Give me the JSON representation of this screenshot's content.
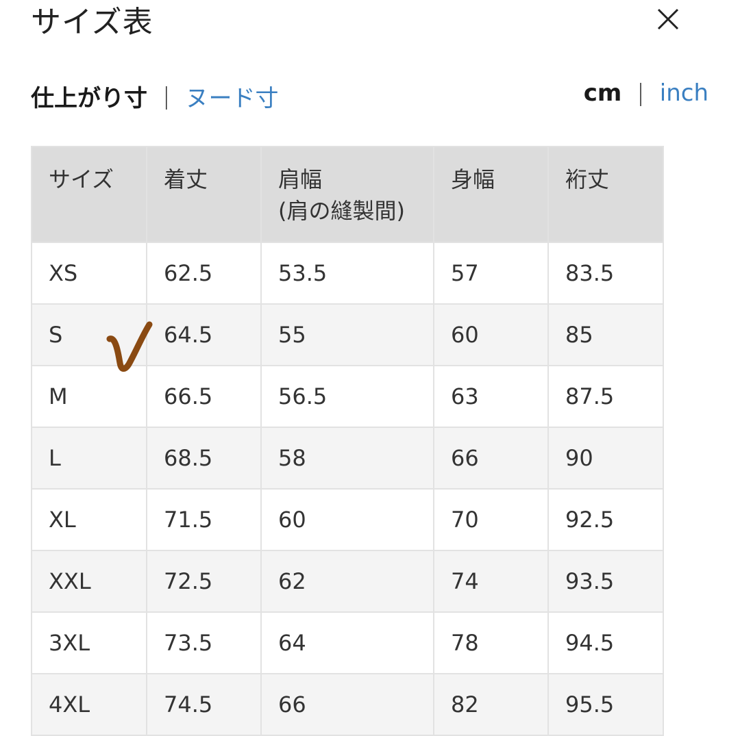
{
  "header": {
    "title": "サイズ表",
    "close_icon": "close-icon"
  },
  "measure_tabs": [
    {
      "label": "仕上がり寸",
      "active": true
    },
    {
      "label": "ヌード寸",
      "active": false
    }
  ],
  "unit_tabs": [
    {
      "label": "cm",
      "active": true
    },
    {
      "label": "inch",
      "active": false
    }
  ],
  "separator": "|",
  "table": {
    "headers": [
      "サイズ",
      "着丈",
      "肩幅\n(肩の縫製間)",
      "身幅",
      "裄丈"
    ],
    "rows": [
      [
        "XS",
        "62.5",
        "53.5",
        "57",
        "83.5"
      ],
      [
        "S",
        "64.5",
        "55",
        "60",
        "85"
      ],
      [
        "M",
        "66.5",
        "56.5",
        "63",
        "87.5"
      ],
      [
        "L",
        "68.5",
        "58",
        "66",
        "90"
      ],
      [
        "XL",
        "71.5",
        "60",
        "70",
        "92.5"
      ],
      [
        "XXL",
        "72.5",
        "62",
        "74",
        "93.5"
      ],
      [
        "3XL",
        "73.5",
        "64",
        "78",
        "94.5"
      ],
      [
        "4XL",
        "74.5",
        "66",
        "82",
        "95.5"
      ]
    ]
  },
  "annotation": {
    "icon": "checkmark-icon",
    "marked_row": "S",
    "color": "#8a4a12"
  },
  "colors": {
    "link": "#3a7fc1",
    "header_bg": "#dcdcdc",
    "alt_row": "#f4f4f4"
  }
}
